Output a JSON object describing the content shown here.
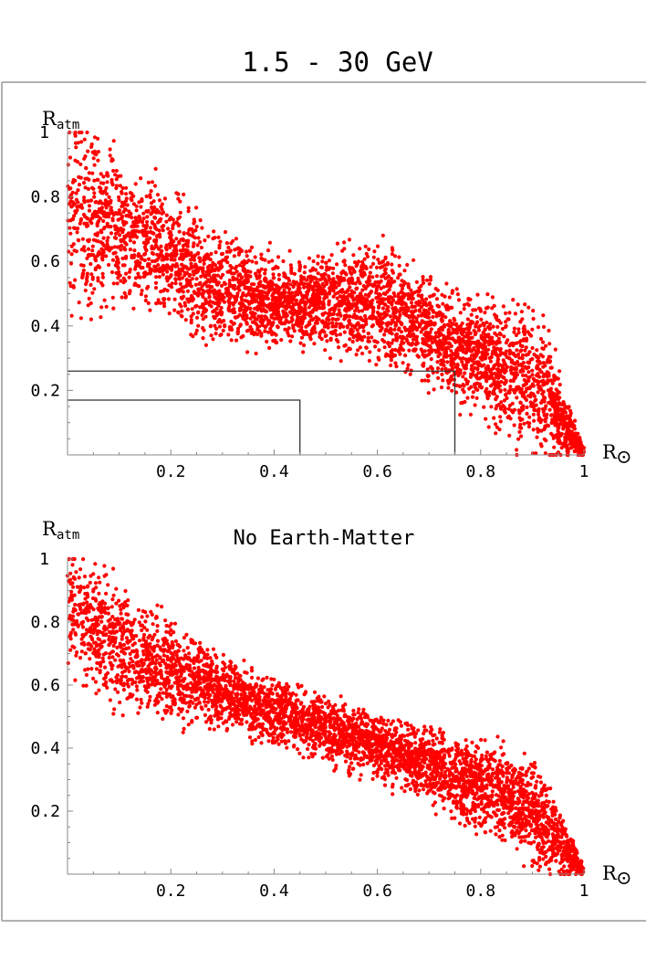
{
  "figure": {
    "title": "1.5 - 30 GeV"
  },
  "chart_data": [
    {
      "type": "scatter",
      "title": "",
      "xlabel": "R",
      "xlabel_symbol": "⊙",
      "ylabel": "R",
      "ylabel_sub": "atm",
      "xlim": [
        0,
        1
      ],
      "ylim": [
        0,
        1
      ],
      "x_ticks": [
        0.2,
        0.4,
        0.6,
        0.8,
        1
      ],
      "x_tick_labels": [
        "0.2",
        "0.4",
        "0.6",
        "0.8",
        "1"
      ],
      "y_ticks": [
        0.2,
        0.4,
        0.6,
        0.8,
        1
      ],
      "y_tick_labels": [
        "0.2",
        "0.4",
        "0.6",
        "0.8",
        "1"
      ],
      "point_color": "#ff0000",
      "grid": false,
      "band_profile": [
        {
          "x": 0.0,
          "y_low": 0.52,
          "y_high": 0.99
        },
        {
          "x": 0.05,
          "y_low": 0.52,
          "y_high": 0.93
        },
        {
          "x": 0.1,
          "y_low": 0.53,
          "y_high": 0.85
        },
        {
          "x": 0.15,
          "y_low": 0.52,
          "y_high": 0.8
        },
        {
          "x": 0.2,
          "y_low": 0.48,
          "y_high": 0.76
        },
        {
          "x": 0.25,
          "y_low": 0.4,
          "y_high": 0.69
        },
        {
          "x": 0.3,
          "y_low": 0.38,
          "y_high": 0.64
        },
        {
          "x": 0.35,
          "y_low": 0.38,
          "y_high": 0.6
        },
        {
          "x": 0.4,
          "y_low": 0.37,
          "y_high": 0.57
        },
        {
          "x": 0.45,
          "y_low": 0.38,
          "y_high": 0.56
        },
        {
          "x": 0.5,
          "y_low": 0.36,
          "y_high": 0.6
        },
        {
          "x": 0.55,
          "y_low": 0.35,
          "y_high": 0.61
        },
        {
          "x": 0.6,
          "y_low": 0.33,
          "y_high": 0.62
        },
        {
          "x": 0.65,
          "y_low": 0.31,
          "y_high": 0.55
        },
        {
          "x": 0.7,
          "y_low": 0.26,
          "y_high": 0.5
        },
        {
          "x": 0.75,
          "y_low": 0.21,
          "y_high": 0.45
        },
        {
          "x": 0.8,
          "y_low": 0.17,
          "y_high": 0.43
        },
        {
          "x": 0.85,
          "y_low": 0.12,
          "y_high": 0.42
        },
        {
          "x": 0.9,
          "y_low": 0.07,
          "y_high": 0.4
        },
        {
          "x": 0.93,
          "y_low": 0.04,
          "y_high": 0.33
        },
        {
          "x": 0.96,
          "y_low": 0.02,
          "y_high": 0.18
        },
        {
          "x": 0.99,
          "y_low": 0.0,
          "y_high": 0.05
        },
        {
          "x": 1.0,
          "y_low": 0.0,
          "y_high": 0.02
        }
      ],
      "reference_boxes": [
        {
          "x_max": 0.45,
          "y_max": 0.17
        },
        {
          "x_max": 0.75,
          "y_max": 0.26
        }
      ]
    },
    {
      "type": "scatter",
      "title": "No Earth-Matter",
      "xlabel": "R",
      "xlabel_symbol": "⊙",
      "ylabel": "R",
      "ylabel_sub": "atm",
      "xlim": [
        0,
        1
      ],
      "ylim": [
        0,
        1
      ],
      "x_ticks": [
        0.2,
        0.4,
        0.6,
        0.8,
        1
      ],
      "x_tick_labels": [
        "0.2",
        "0.4",
        "0.6",
        "0.8",
        "1"
      ],
      "y_ticks": [
        0.2,
        0.4,
        0.6,
        0.8,
        1
      ],
      "y_tick_labels": [
        "0.2",
        "0.4",
        "0.6",
        "0.8",
        "1"
      ],
      "point_color": "#ff0000",
      "grid": false,
      "band_profile": [
        {
          "x": 0.0,
          "y_low": 0.68,
          "y_high": 0.99
        },
        {
          "x": 0.05,
          "y_low": 0.64,
          "y_high": 0.93
        },
        {
          "x": 0.1,
          "y_low": 0.58,
          "y_high": 0.87
        },
        {
          "x": 0.15,
          "y_low": 0.56,
          "y_high": 0.81
        },
        {
          "x": 0.2,
          "y_low": 0.53,
          "y_high": 0.76
        },
        {
          "x": 0.3,
          "y_low": 0.5,
          "y_high": 0.66
        },
        {
          "x": 0.4,
          "y_low": 0.44,
          "y_high": 0.6
        },
        {
          "x": 0.5,
          "y_low": 0.39,
          "y_high": 0.53
        },
        {
          "x": 0.6,
          "y_low": 0.33,
          "y_high": 0.48
        },
        {
          "x": 0.7,
          "y_low": 0.27,
          "y_high": 0.43
        },
        {
          "x": 0.8,
          "y_low": 0.18,
          "y_high": 0.38
        },
        {
          "x": 0.85,
          "y_low": 0.13,
          "y_high": 0.35
        },
        {
          "x": 0.9,
          "y_low": 0.08,
          "y_high": 0.32
        },
        {
          "x": 0.94,
          "y_low": 0.04,
          "y_high": 0.23
        },
        {
          "x": 0.97,
          "y_low": 0.01,
          "y_high": 0.12
        },
        {
          "x": 1.0,
          "y_low": 0.0,
          "y_high": 0.02
        }
      ],
      "reference_boxes": []
    }
  ]
}
